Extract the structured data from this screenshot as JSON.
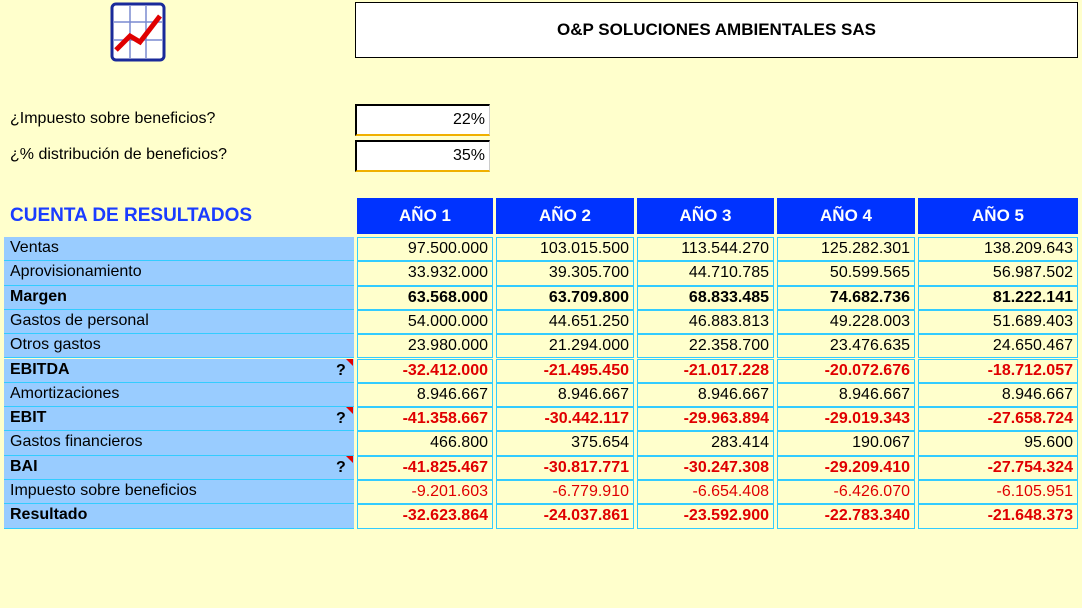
{
  "header": {
    "title": "O&P SOLUCIONES AMBIENTALES SAS"
  },
  "params": [
    {
      "label": "¿Impuesto sobre beneficios?",
      "value": "22%"
    },
    {
      "label": "¿% distribución de beneficios?",
      "value": "35%"
    }
  ],
  "table": {
    "title": "CUENTA DE RESULTADOS",
    "columns": [
      "AÑO 1",
      "AÑO 2",
      "AÑO 3",
      "AÑO 4",
      "AÑO 5"
    ],
    "rows": [
      {
        "label": "Ventas",
        "values": [
          "97.500.000",
          "103.015.500",
          "113.544.270",
          "125.282.301",
          "138.209.643"
        ]
      },
      {
        "label": "Aprovisionamiento",
        "values": [
          "33.932.000",
          "39.305.700",
          "44.710.785",
          "50.599.565",
          "56.987.502"
        ]
      },
      {
        "label": "Margen",
        "bold": true,
        "values": [
          "63.568.000",
          "63.709.800",
          "68.833.485",
          "74.682.736",
          "81.222.141"
        ]
      },
      {
        "label": "Gastos de personal",
        "values": [
          "54.000.000",
          "44.651.250",
          "46.883.813",
          "49.228.003",
          "51.689.403"
        ]
      },
      {
        "label": "Otros gastos",
        "values": [
          "23.980.000",
          "21.294.000",
          "22.358.700",
          "23.476.635",
          "24.650.467"
        ]
      },
      {
        "label": "EBITDA",
        "bold": true,
        "note": "?",
        "values": [
          "-32.412.000",
          "-21.495.450",
          "-21.017.228",
          "-20.072.676",
          "-18.712.057"
        ]
      },
      {
        "label": "Amortizaciones",
        "values": [
          "8.946.667",
          "8.946.667",
          "8.946.667",
          "8.946.667",
          "8.946.667"
        ]
      },
      {
        "label": "EBIT",
        "bold": true,
        "note": "?",
        "values": [
          "-41.358.667",
          "-30.442.117",
          "-29.963.894",
          "-29.019.343",
          "-27.658.724"
        ]
      },
      {
        "label": "Gastos financieros",
        "values": [
          "466.800",
          "375.654",
          "283.414",
          "190.067",
          "95.600"
        ]
      },
      {
        "label": "BAI",
        "bold": true,
        "note": "?",
        "values": [
          "-41.825.467",
          "-30.817.771",
          "-30.247.308",
          "-29.209.410",
          "-27.754.324"
        ]
      },
      {
        "label": "Impuesto sobre beneficios",
        "values": [
          "-9.201.603",
          "-6.779.910",
          "-6.654.408",
          "-6.426.070",
          "-6.105.951"
        ]
      },
      {
        "label": "Resultado",
        "bold": true,
        "values": [
          "-32.623.864",
          "-24.037.861",
          "-23.592.900",
          "-22.783.340",
          "-21.648.373"
        ]
      }
    ]
  }
}
